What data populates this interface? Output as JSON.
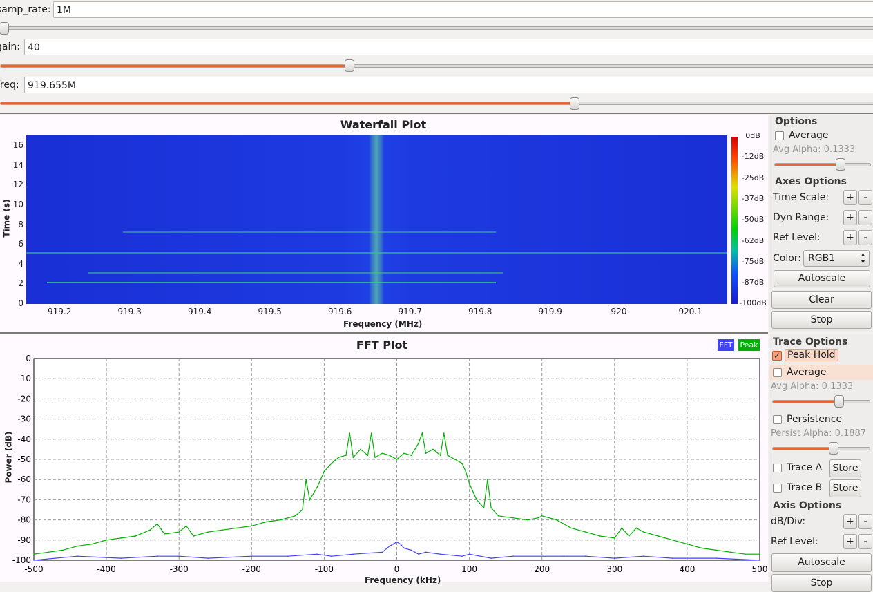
{
  "params": {
    "samp_rate": {
      "label": "samp_rate:",
      "value": "1M",
      "slider": 0.0
    },
    "gain": {
      "label": "gain:",
      "value": "40",
      "slider": 0.4
    },
    "freq": {
      "label": "freq:",
      "value": "919.655M",
      "slider": 0.66
    }
  },
  "waterfall": {
    "title": "Waterfall Plot",
    "xlabel": "Frequency (MHz)",
    "ylabel": "Time (s)",
    "xticks": [
      "919.2",
      "919.3",
      "919.4",
      "919.5",
      "919.6",
      "919.7",
      "919.8",
      "919.9",
      "920",
      "920.1"
    ],
    "yticks": [
      "0",
      "2",
      "4",
      "6",
      "8",
      "10",
      "12",
      "14",
      "16"
    ],
    "colorbar": [
      "0dB",
      "-12dB",
      "-25dB",
      "-37dB",
      "-50dB",
      "-62dB",
      "-75dB",
      "-87dB",
      "-100dB"
    ]
  },
  "fft": {
    "title": "FFT Plot",
    "xlabel": "Frequency (kHz)",
    "ylabel": "Power (dB)",
    "legend": {
      "fft": "FFT",
      "peak": "Peak",
      "fft_color": "#4040ff",
      "peak_color": "#00b000"
    },
    "xticks": [
      "-500",
      "-400",
      "-300",
      "-200",
      "-100",
      "0",
      "100",
      "200",
      "300",
      "400",
      "500"
    ],
    "yticks": [
      "0",
      "-10",
      "-20",
      "-30",
      "-40",
      "-50",
      "-60",
      "-70",
      "-80",
      "-90",
      "-100"
    ]
  },
  "wf_options": {
    "options_title": "Options",
    "average": "Average",
    "avg_alpha": "Avg Alpha: 0.1333",
    "avg_alpha_value": 0.1333,
    "axes_title": "Axes Options",
    "time_scale": "Time Scale:",
    "dyn_range": "Dyn Range:",
    "ref_level": "Ref Level:",
    "color_label": "Color:",
    "color_value": "RGB1",
    "plus": "+",
    "minus": "-",
    "autoscale": "Autoscale",
    "clear": "Clear",
    "stop": "Stop"
  },
  "fft_options": {
    "trace_title": "Trace Options",
    "peak_hold": "Peak Hold",
    "peak_hold_checked": true,
    "average": "Average",
    "avg_alpha": "Avg Alpha: 0.1333",
    "persistence": "Persistence",
    "persist_alpha": "Persist Alpha: 0.1887",
    "trace_a": "Trace A",
    "trace_b": "Trace B",
    "store": "Store",
    "axis_title": "Axis Options",
    "db_div": "dB/Div:",
    "ref_level": "Ref Level:",
    "plus": "+",
    "minus": "-",
    "autoscale": "Autoscale",
    "stop": "Stop"
  },
  "chart_data": [
    {
      "type": "heatmap",
      "title": "Waterfall Plot",
      "xlabel": "Frequency (MHz)",
      "ylabel": "Time (s)",
      "xlim": [
        919.155,
        920.155
      ],
      "ylim": [
        0,
        17
      ],
      "color_range_db": [
        -100,
        0
      ],
      "colormap": "RGB1",
      "signal_center_mhz": 919.655,
      "horizontal_line_times_s": [
        1.0,
        3.0,
        5.0,
        7.2
      ]
    },
    {
      "type": "line",
      "title": "FFT Plot",
      "xlabel": "Frequency (kHz)",
      "ylabel": "Power (dB)",
      "xlim": [
        -500,
        500
      ],
      "ylim": [
        -100,
        0
      ],
      "grid": true,
      "legend_position": "top-right",
      "series": [
        {
          "name": "Peak",
          "color": "#00b000",
          "x": [
            -500,
            -480,
            -460,
            -440,
            -420,
            -400,
            -380,
            -360,
            -340,
            -330,
            -320,
            -300,
            -290,
            -280,
            -260,
            -240,
            -220,
            -200,
            -180,
            -160,
            -140,
            -130,
            -125,
            -120,
            -110,
            -100,
            -90,
            -80,
            -70,
            -65,
            -60,
            -50,
            -40,
            -35,
            -30,
            -20,
            -10,
            0,
            10,
            20,
            30,
            35,
            40,
            50,
            60,
            65,
            70,
            80,
            90,
            95,
            100,
            110,
            120,
            125,
            130,
            140,
            160,
            180,
            195,
            200,
            220,
            240,
            260,
            280,
            300,
            310,
            320,
            330,
            340,
            360,
            380,
            400,
            420,
            440,
            460,
            480,
            500
          ],
          "y": [
            -97,
            -96,
            -95,
            -93,
            -92,
            -90,
            -89,
            -88,
            -85,
            -82,
            -87,
            -86,
            -83,
            -88,
            -86,
            -85,
            -84,
            -83,
            -81,
            -80,
            -78,
            -75,
            -60,
            -70,
            -64,
            -56,
            -52,
            -49,
            -48,
            -37,
            -49,
            -45,
            -48,
            -37,
            -49,
            -47,
            -48,
            -50,
            -47,
            -48,
            -42,
            -37,
            -47,
            -45,
            -48,
            -37,
            -48,
            -50,
            -52,
            -56,
            -62,
            -70,
            -74,
            -60,
            -74,
            -78,
            -79,
            -80,
            -79,
            -78,
            -80,
            -84,
            -86,
            -88,
            -89,
            -84,
            -88,
            -84,
            -86,
            -88,
            -90,
            -92,
            -94,
            -95,
            -96,
            -97,
            -97
          ]
        },
        {
          "name": "FFT",
          "color": "#4040ff",
          "x": [
            -500,
            -440,
            -380,
            -330,
            -300,
            -260,
            -200,
            -150,
            -110,
            -90,
            -60,
            -20,
            -10,
            -5,
            0,
            5,
            10,
            20,
            30,
            40,
            60,
            90,
            100,
            130,
            160,
            230,
            260,
            300,
            340,
            380,
            440,
            500
          ],
          "y": [
            -100,
            -98,
            -99,
            -98,
            -98,
            -99,
            -98,
            -98,
            -97,
            -98,
            -97,
            -96,
            -93,
            -92,
            -91,
            -92,
            -94,
            -95,
            -97,
            -96,
            -97,
            -98,
            -97,
            -99,
            -98,
            -98,
            -98,
            -99,
            -98,
            -99,
            -99,
            -100
          ]
        }
      ]
    }
  ]
}
